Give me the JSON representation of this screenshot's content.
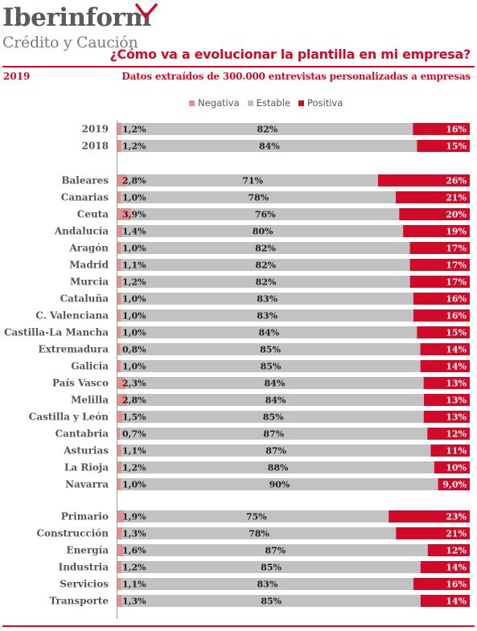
{
  "brand": {
    "name": "Iberinform",
    "tagline": "Crédito y Caución"
  },
  "header": {
    "title": "¿Cómo va a evolucionar la plantilla en mi empresa?",
    "year": "2019",
    "source": "Datos extraídos de 300.000 entrevistas personalizadas a empresas"
  },
  "colors": {
    "negativa": "#e0908e",
    "estable": "#c2c2c2",
    "positiva": "#d10a2a",
    "accent": "#d10a2a"
  },
  "chart_data": {
    "type": "bar",
    "orientation": "horizontal",
    "stacked": true,
    "percent": true,
    "legend": [
      "Negativa",
      "Estable",
      "Positiva"
    ],
    "legend_placement": "top",
    "groups": [
      {
        "rows": [
          {
            "label": "2019",
            "negativa": 1.2,
            "estable": 82,
            "positiva": 16,
            "labels": [
              "1,2%",
              "82%",
              "16%"
            ]
          },
          {
            "label": "2018",
            "negativa": 1.2,
            "estable": 84,
            "positiva": 15,
            "labels": [
              "1,2%",
              "84%",
              "15%"
            ]
          }
        ]
      },
      {
        "rows": [
          {
            "label": "Baleares",
            "negativa": 2.8,
            "estable": 71,
            "positiva": 26,
            "labels": [
              "2,8%",
              "71%",
              "26%"
            ]
          },
          {
            "label": "Canarias",
            "negativa": 1.0,
            "estable": 78,
            "positiva": 21,
            "labels": [
              "1,0%",
              "78%",
              "21%"
            ]
          },
          {
            "label": "Ceuta",
            "negativa": 3.9,
            "estable": 76,
            "positiva": 20,
            "labels": [
              "3,9%",
              "76%",
              "20%"
            ]
          },
          {
            "label": "Andalucía",
            "negativa": 1.4,
            "estable": 80,
            "positiva": 19,
            "labels": [
              "1,4%",
              "80%",
              "19%"
            ]
          },
          {
            "label": "Aragón",
            "negativa": 1.0,
            "estable": 82,
            "positiva": 17,
            "labels": [
              "1,0%",
              "82%",
              "17%"
            ]
          },
          {
            "label": "Madrid",
            "negativa": 1.1,
            "estable": 82,
            "positiva": 17,
            "labels": [
              "1,1%",
              "82%",
              "17%"
            ]
          },
          {
            "label": "Murcia",
            "negativa": 1.2,
            "estable": 82,
            "positiva": 17,
            "labels": [
              "1,2%",
              "82%",
              "17%"
            ]
          },
          {
            "label": "Cataluña",
            "negativa": 1.0,
            "estable": 83,
            "positiva": 16,
            "labels": [
              "1,0%",
              "83%",
              "16%"
            ]
          },
          {
            "label": "C. Valenciana",
            "negativa": 1.0,
            "estable": 83,
            "positiva": 16,
            "labels": [
              "1,0%",
              "83%",
              "16%"
            ]
          },
          {
            "label": "Castilla-La Mancha",
            "negativa": 1.0,
            "estable": 84,
            "positiva": 15,
            "labels": [
              "1,0%",
              "84%",
              "15%"
            ]
          },
          {
            "label": "Extremadura",
            "negativa": 0.8,
            "estable": 85,
            "positiva": 14,
            "labels": [
              "0,8%",
              "85%",
              "14%"
            ]
          },
          {
            "label": "Galicia",
            "negativa": 1.0,
            "estable": 85,
            "positiva": 14,
            "labels": [
              "1,0%",
              "85%",
              "14%"
            ]
          },
          {
            "label": "País Vasco",
            "negativa": 2.3,
            "estable": 84,
            "positiva": 13,
            "labels": [
              "2,3%",
              "84%",
              "13%"
            ]
          },
          {
            "label": "Melilla",
            "negativa": 2.8,
            "estable": 84,
            "positiva": 13,
            "labels": [
              "2,8%",
              "84%",
              "13%"
            ]
          },
          {
            "label": "Castilla y León",
            "negativa": 1.5,
            "estable": 85,
            "positiva": 13,
            "labels": [
              "1,5%",
              "85%",
              "13%"
            ]
          },
          {
            "label": "Cantabria",
            "negativa": 0.7,
            "estable": 87,
            "positiva": 12,
            "labels": [
              "0,7%",
              "87%",
              "12%"
            ]
          },
          {
            "label": "Asturias",
            "negativa": 1.1,
            "estable": 87,
            "positiva": 11,
            "labels": [
              "1,1%",
              "87%",
              "11%"
            ]
          },
          {
            "label": "La Rioja",
            "negativa": 1.2,
            "estable": 88,
            "positiva": 10,
            "labels": [
              "1,2%",
              "88%",
              "10%"
            ]
          },
          {
            "label": "Navarra",
            "negativa": 1.0,
            "estable": 90,
            "positiva": 9.0,
            "labels": [
              "1,0%",
              "90%",
              "9,0%"
            ]
          }
        ]
      },
      {
        "rows": [
          {
            "label": "Primario",
            "negativa": 1.9,
            "estable": 75,
            "positiva": 23,
            "labels": [
              "1,9%",
              "75%",
              "23%"
            ]
          },
          {
            "label": "Construcción",
            "negativa": 1.3,
            "estable": 78,
            "positiva": 21,
            "labels": [
              "1,3%",
              "78%",
              "21%"
            ]
          },
          {
            "label": "Energía",
            "negativa": 1.6,
            "estable": 87,
            "positiva": 12,
            "labels": [
              "1,6%",
              "87%",
              "12%"
            ]
          },
          {
            "label": "Industria",
            "negativa": 1.2,
            "estable": 85,
            "positiva": 14,
            "labels": [
              "1,2%",
              "85%",
              "14%"
            ]
          },
          {
            "label": "Servicios",
            "negativa": 1.1,
            "estable": 83,
            "positiva": 16,
            "labels": [
              "1,1%",
              "83%",
              "16%"
            ]
          },
          {
            "label": "Transporte",
            "negativa": 1.3,
            "estable": 85,
            "positiva": 14,
            "labels": [
              "1,3%",
              "85%",
              "14%"
            ]
          }
        ]
      }
    ]
  }
}
